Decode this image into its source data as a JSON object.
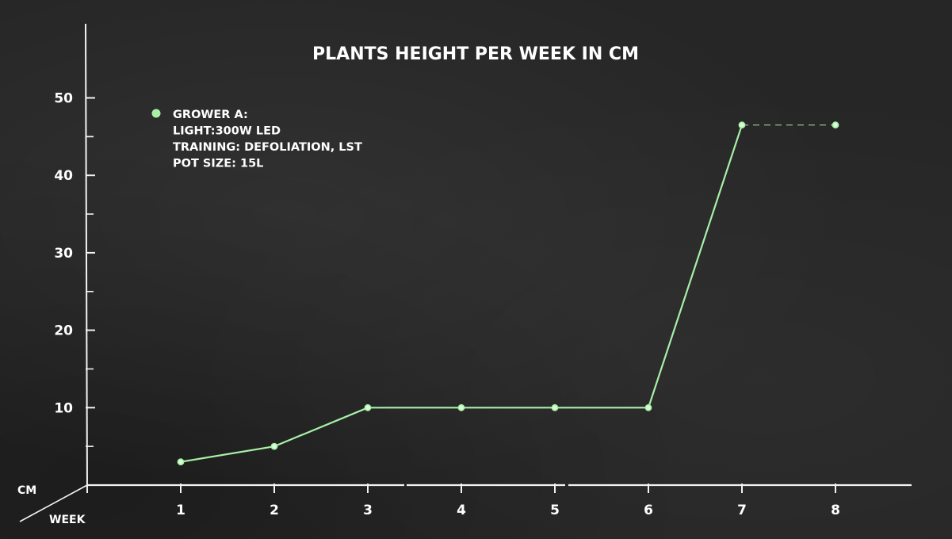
{
  "chart_data": {
    "type": "line",
    "title": "PLANTS HEIGHT PER WEEK IN CM",
    "xlabel": "WEEK",
    "ylabel": "CM",
    "x": [
      1,
      2,
      3,
      4,
      5,
      6,
      7,
      8
    ],
    "x_tick_labels": [
      "1",
      "2",
      "3",
      "4",
      "5",
      "6",
      "7",
      "8"
    ],
    "y_tick_labels": [
      "10",
      "20",
      "30",
      "40",
      "50"
    ],
    "y_ticks": [
      10,
      20,
      30,
      40,
      50
    ],
    "ylim": [
      0,
      55
    ],
    "xlim": [
      0,
      9
    ],
    "grid": false,
    "legend_position": "top-left",
    "series": [
      {
        "name": "GROWER A:",
        "values": [
          3,
          5,
          10,
          10,
          10,
          10,
          46.5,
          46.5
        ],
        "solid_until_x": 7,
        "dashed_from_x": 7,
        "color": "#a8f0a8"
      }
    ],
    "legend_lines": [
      "GROWER A:",
      "LIGHT:300W LED",
      "TRAINING: DEFOLIATION, LST",
      "POT SIZE: 15L"
    ]
  }
}
